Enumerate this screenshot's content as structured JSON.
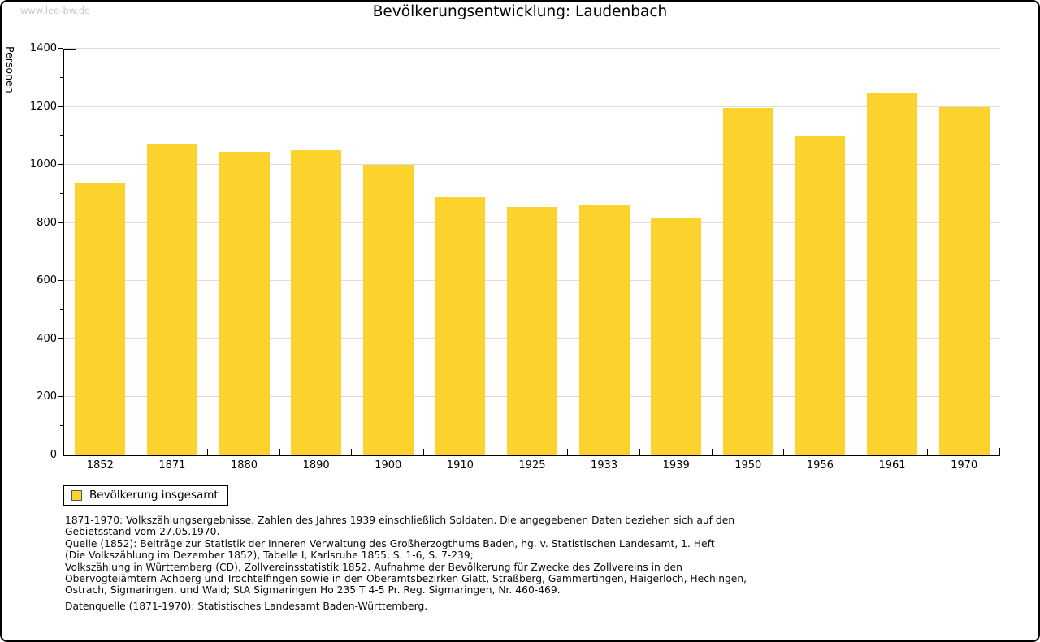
{
  "watermark": "www.leo-bw.de",
  "title": "Bevölkerungsentwicklung: Laudenbach",
  "colors": {
    "bar": "#FCD32D",
    "grid": "#DCDCDC",
    "axis": "#000000",
    "watermark": "#C9C9C9"
  },
  "chart_data": {
    "type": "bar",
    "title": "Bevölkerungsentwicklung: Laudenbach",
    "xlabel": "",
    "ylabel": "Personen",
    "ylim": [
      0,
      1400
    ],
    "ytick_step": 200,
    "ytick_minor_step": 100,
    "yticks": [
      0,
      200,
      400,
      600,
      800,
      1000,
      1200,
      1400
    ],
    "grid": true,
    "legend_position": "bottom-left",
    "categories": [
      "1852",
      "1871",
      "1880",
      "1890",
      "1900",
      "1910",
      "1925",
      "1933",
      "1939",
      "1950",
      "1956",
      "1961",
      "1970"
    ],
    "series": [
      {
        "name": "Bevölkerung insgesamt",
        "values": [
          940,
          1070,
          1045,
          1050,
          1000,
          890,
          855,
          860,
          820,
          1195,
          1100,
          1250,
          1200
        ]
      }
    ]
  },
  "legend": {
    "label": "Bevölkerung insgesamt"
  },
  "footnotes": [
    "1871-1970: Volkszählungsergebnisse. Zahlen des Jahres 1939 einschließlich Soldaten. Die angegebenen Daten beziehen sich auf den",
    "Gebietsstand vom 27.05.1970.",
    "Quelle (1852): Beiträge zur Statistik der Inneren Verwaltung des Großherzogthums Baden, hg. v. Statistischen Landesamt, 1. Heft",
    "(Die Volkszählung im Dezember 1852), Tabelle I, Karlsruhe 1855, S. 1-6, S. 7-239;",
    "Volkszählung in Württemberg (CD), Zollvereinsstatistik 1852. Aufnahme der Bevölkerung für Zwecke des Zollvereins in den",
    "Obervogteiämtern Achberg und Trochtelfingen sowie in den Oberamtsbezirken Glatt, Straßberg, Gammertingen, Haigerloch, Hechingen,",
    "Ostrach, Sigmaringen, und Wald; StA Sigmaringen Ho 235 T 4-5 Pr. Reg. Sigmaringen, Nr. 460-469."
  ],
  "datasource": "Datenquelle (1871-1970): Statistisches Landesamt Baden-Württemberg."
}
